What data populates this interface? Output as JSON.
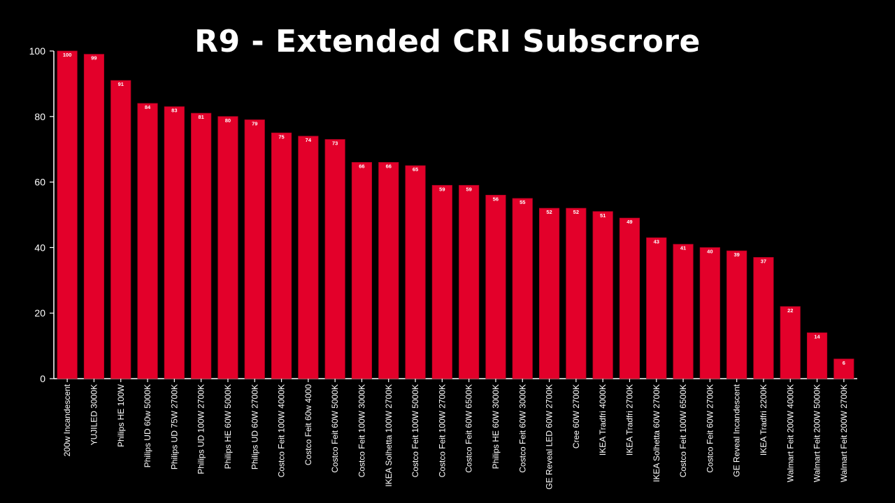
{
  "chart_data": {
    "type": "bar",
    "title": "R9 - Extended CRI Subscrore",
    "xlabel": "",
    "ylabel": "",
    "ylim": [
      0,
      100
    ],
    "yticks": [
      0,
      20,
      40,
      60,
      80,
      100
    ],
    "grid": false,
    "legend": "none",
    "data_labels": true,
    "bar_color": "#e3002a",
    "background_color": "#000000",
    "categories": [
      "200w Incandescent",
      "YUJILED 3000K",
      "Philips HE 100W",
      "Philips UD 60w 5000K",
      "Philips UD 75W 2700K",
      "Philips UD 100W 2700K",
      "Philips HE 60W 5000K",
      "Philips UD 60W 2700K",
      "Costco Feit 100W 4000K",
      "Costco Feit 60w 4000",
      "Costco Feit 60W 5000K",
      "Costco Feit 100W 3000K",
      "IKEA Solhetta 100W 2700K",
      "Costco Feit 100W 5000K",
      "Costco Feit 100W 2700K",
      "Costco Feit 60W 6500K",
      "Philips HE 60W 3000K",
      "Costco Feit 60W 3000K",
      "GE Reveal LED 60W 2700K",
      "Cree 60W 2700K",
      "IKEA Tradfri 4000K",
      "IKEA Tradfri 2700K",
      "IKEA Solhetta 60W 2700K",
      "Costco Feit 100W 6500K",
      "Costco Feit 60W 2700K",
      "GE Reveal Incandescent",
      "IKEA Tradfri 2200K",
      "Walmart Feit 200W 4000K",
      "Walmart Feit 200W 5000K",
      "Walmart Feit 200W 2700K"
    ],
    "values": [
      100,
      99,
      91,
      84,
      83,
      81,
      80,
      79,
      75,
      74,
      73,
      66,
      66,
      65,
      59,
      59,
      56,
      55,
      52,
      52,
      51,
      49,
      43,
      41,
      40,
      39,
      37,
      22,
      14,
      6
    ]
  }
}
